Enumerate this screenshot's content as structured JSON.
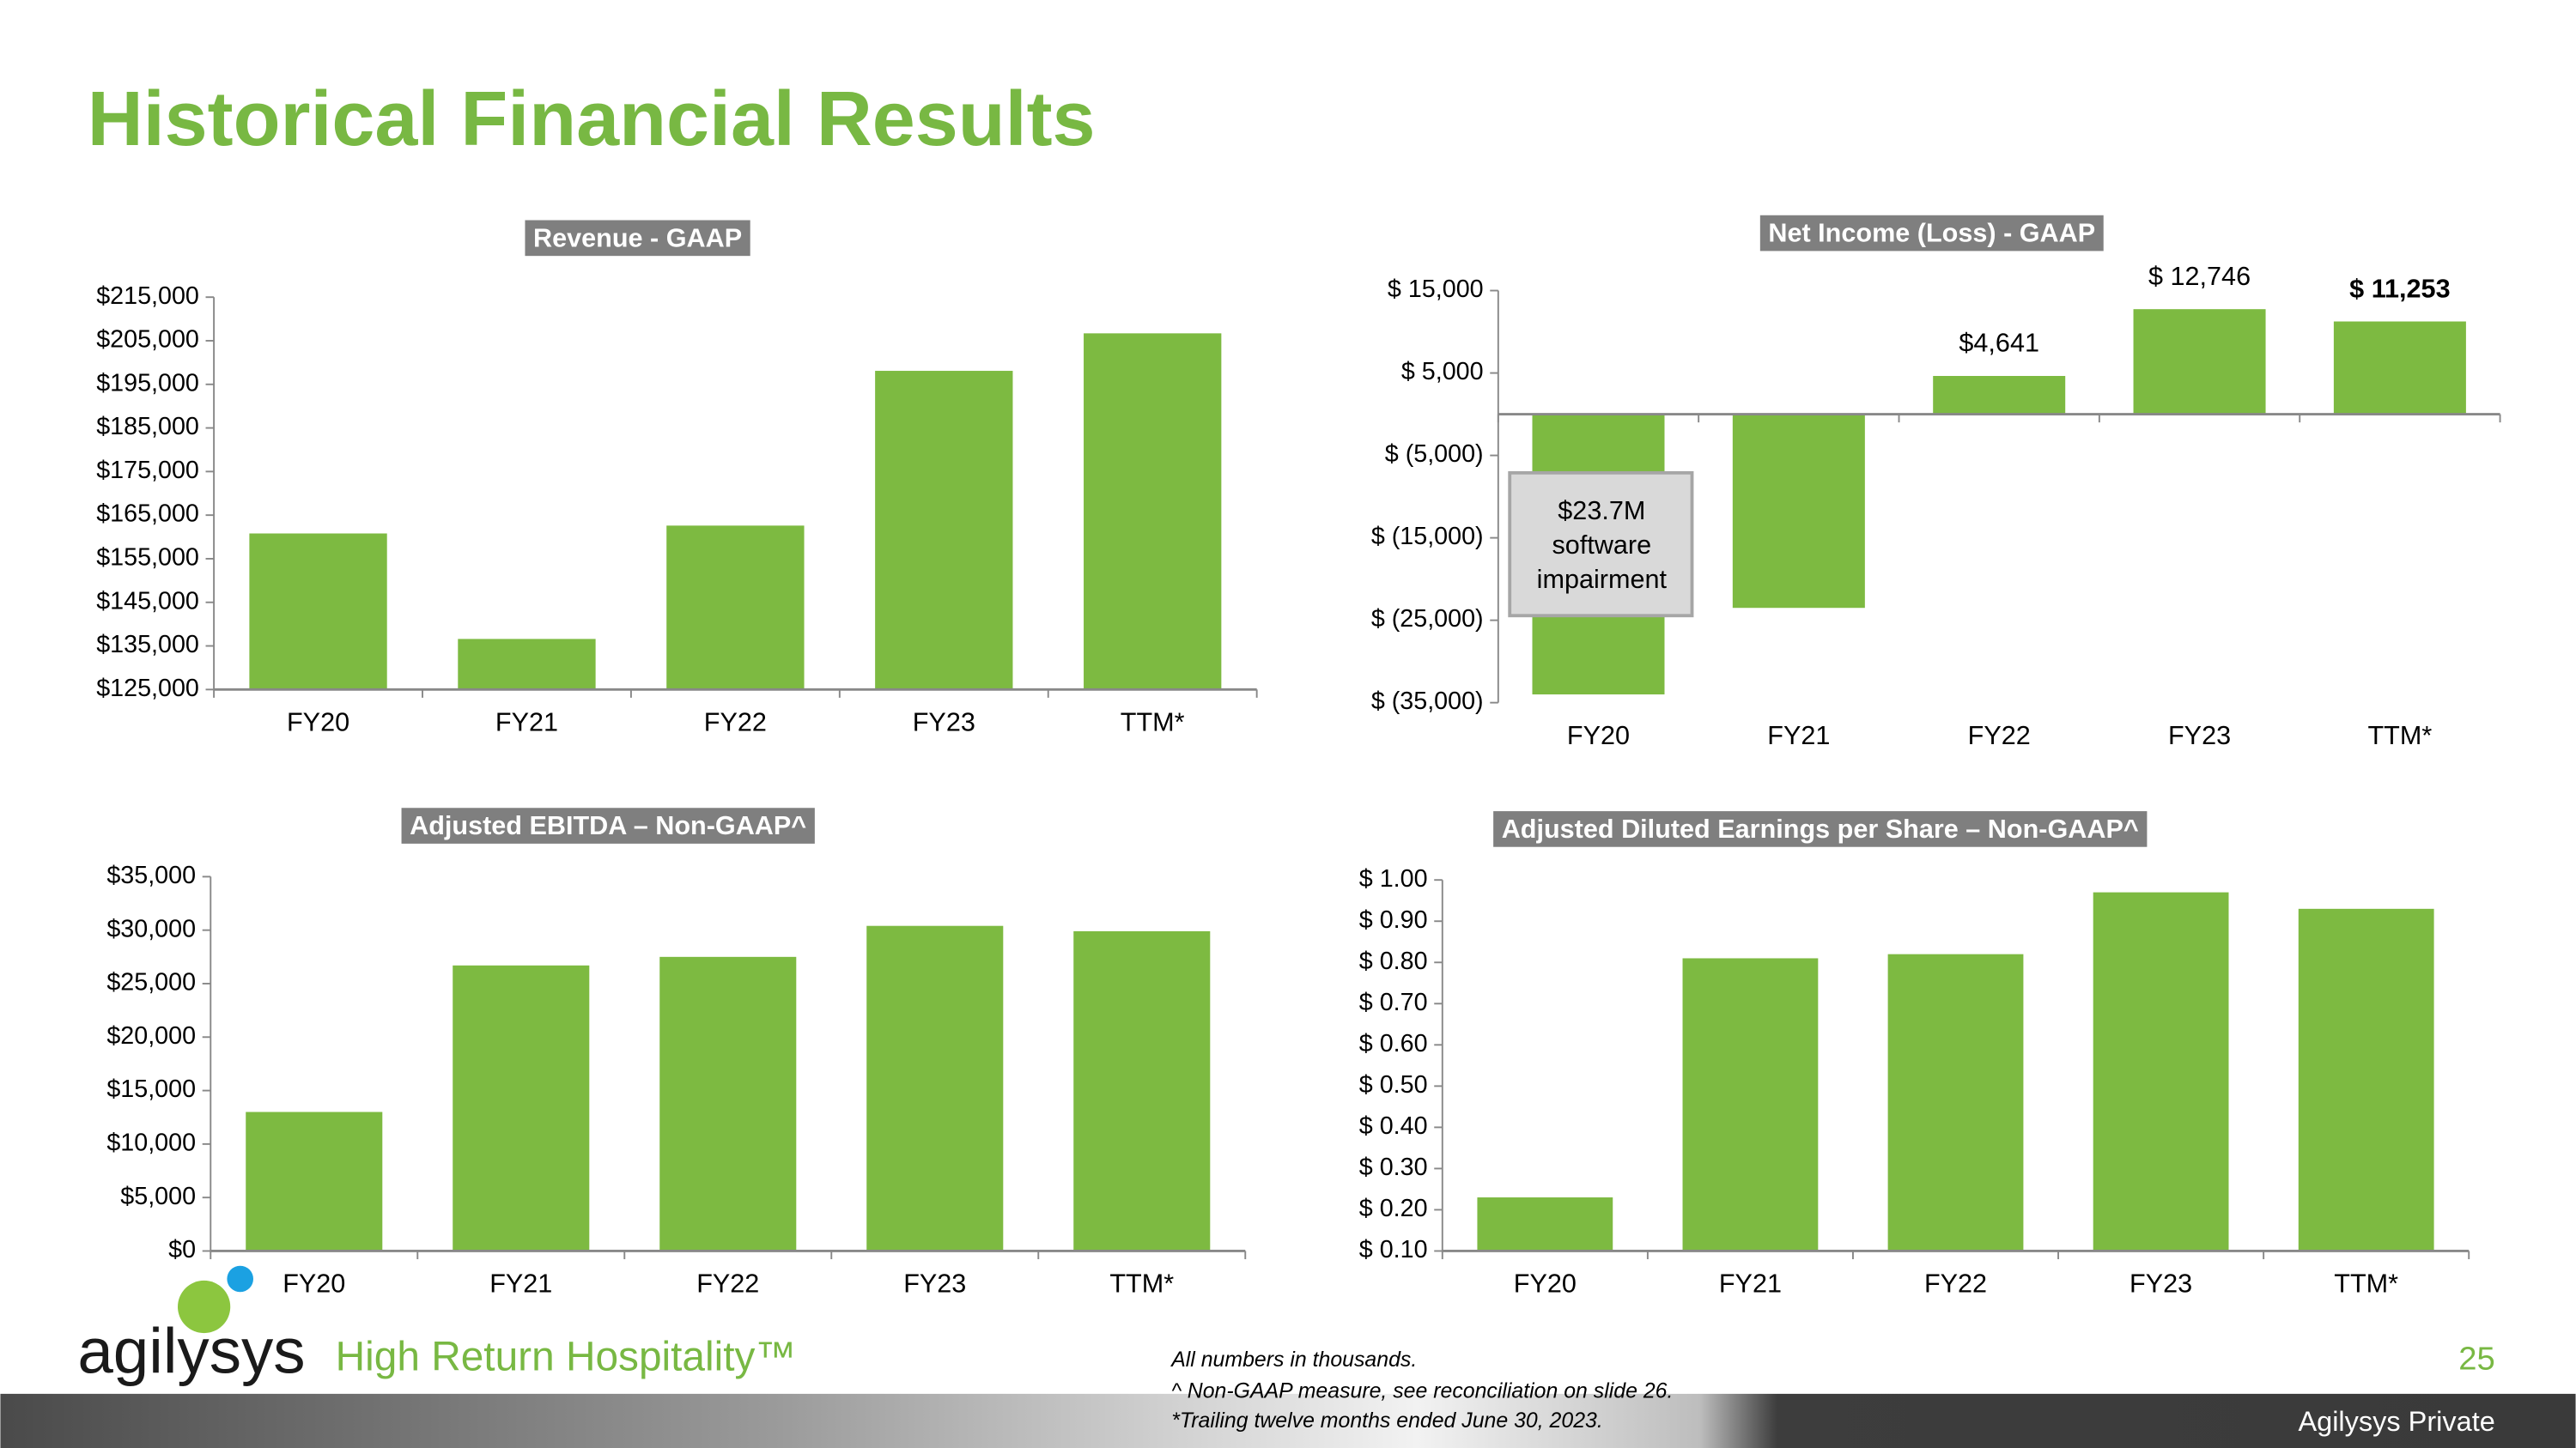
{
  "title": "Historical Financial Results",
  "chart_data": [
    {
      "type": "bar",
      "title": "Revenue - GAAP",
      "color": "#7dba41",
      "categories": [
        "FY20",
        "FY21",
        "FY22",
        "FY23",
        "TTM*"
      ],
      "values": [
        160800,
        136600,
        162600,
        198100,
        206700
      ],
      "ylim": [
        125000,
        215000
      ],
      "yticks": [
        {
          "value": 125000,
          "label": "$125,000"
        },
        {
          "value": 135000,
          "label": "$135,000"
        },
        {
          "value": 145000,
          "label": "$145,000"
        },
        {
          "value": 155000,
          "label": "$155,000"
        },
        {
          "value": 165000,
          "label": "$165,000"
        },
        {
          "value": 175000,
          "label": "$175,000"
        },
        {
          "value": 185000,
          "label": "$185,000"
        },
        {
          "value": 195000,
          "label": "$195,000"
        },
        {
          "value": 205000,
          "label": "$205,000"
        },
        {
          "value": 215000,
          "label": "$215,000"
        }
      ]
    },
    {
      "type": "bar",
      "title": "Net Income (Loss) - GAAP",
      "color": "#7dba41",
      "categories": [
        "FY20",
        "FY21",
        "FY22",
        "FY23",
        "TTM*"
      ],
      "values": [
        -34000,
        -23500,
        4641,
        12746,
        11253
      ],
      "value_labels": [
        null,
        null,
        "$4,641",
        "$ 12,746",
        "$ 11,253"
      ],
      "ylim": [
        -35000,
        15000
      ],
      "yticks": [
        {
          "value": -35000,
          "label": "$ (35,000)"
        },
        {
          "value": -25000,
          "label": "$ (25,000)"
        },
        {
          "value": -15000,
          "label": "$ (15,000)"
        },
        {
          "value": -5000,
          "label": "$ (5,000)"
        },
        {
          "value": 5000,
          "label": "$ 5,000"
        },
        {
          "value": 15000,
          "label": "$ 15,000"
        }
      ],
      "annotation": [
        "$23.7M",
        "software",
        "impairment"
      ]
    },
    {
      "type": "bar",
      "title": "Adjusted EBITDA – Non-GAAP^",
      "color": "#7dba41",
      "categories": [
        "FY20",
        "FY21",
        "FY22",
        "FY23",
        "TTM*"
      ],
      "values": [
        13000,
        26700,
        27500,
        30400,
        29900
      ],
      "ylim": [
        0,
        35000
      ],
      "yticks": [
        {
          "value": 0,
          "label": "$0"
        },
        {
          "value": 5000,
          "label": "$5,000"
        },
        {
          "value": 10000,
          "label": "$10,000"
        },
        {
          "value": 15000,
          "label": "$15,000"
        },
        {
          "value": 20000,
          "label": "$20,000"
        },
        {
          "value": 25000,
          "label": "$25,000"
        },
        {
          "value": 30000,
          "label": "$30,000"
        },
        {
          "value": 35000,
          "label": "$35,000"
        }
      ]
    },
    {
      "type": "bar",
      "title": "Adjusted Diluted Earnings per Share – Non-GAAP^",
      "color": "#7dba41",
      "categories": [
        "FY20",
        "FY21",
        "FY22",
        "FY23",
        "TTM*"
      ],
      "values": [
        0.23,
        0.81,
        0.82,
        0.97,
        0.93
      ],
      "ylim": [
        0.1,
        1.0
      ],
      "yticks": [
        {
          "value": 0.1,
          "label": "$ 0.10"
        },
        {
          "value": 0.2,
          "label": "$ 0.20"
        },
        {
          "value": 0.3,
          "label": "$ 0.30"
        },
        {
          "value": 0.4,
          "label": "$ 0.40"
        },
        {
          "value": 0.5,
          "label": "$ 0.50"
        },
        {
          "value": 0.6,
          "label": "$ 0.60"
        },
        {
          "value": 0.7,
          "label": "$ 0.70"
        },
        {
          "value": 0.8,
          "label": "$ 0.80"
        },
        {
          "value": 0.9,
          "label": "$ 0.90"
        },
        {
          "value": 1.0,
          "label": "$ 1.00"
        }
      ]
    }
  ],
  "logo": {
    "name": "agilysys",
    "tagline": "High Return Hospitality™"
  },
  "notes": [
    "All numbers in thousands.",
    "^ Non-GAAP measure, see reconciliation on slide 26.",
    "*Trailing twelve months ended June 30, 2023."
  ],
  "page_number": "25",
  "classification": "Agilysys Private"
}
